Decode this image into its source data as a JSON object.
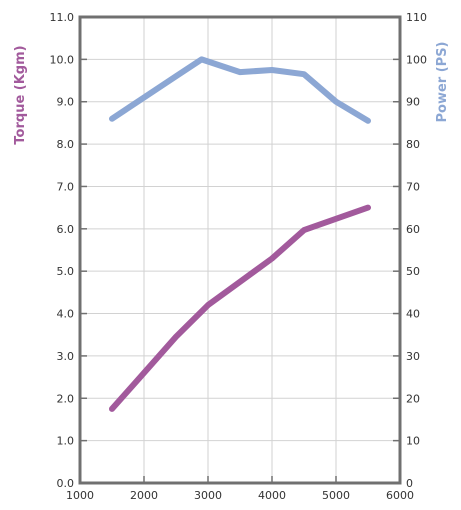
{
  "chart_data": {
    "type": "line",
    "xlabel": "",
    "y_left_label": "Torque (Kgm)",
    "y_right_label": "Power (PS)",
    "x_ticks": [
      "1000",
      "2000",
      "3000",
      "4000",
      "5000",
      "6000"
    ],
    "y_left_ticks": [
      "0.0",
      "1.0",
      "2.0",
      "3.0",
      "4.0",
      "5.0",
      "6.0",
      "7.0",
      "8.0",
      "9.0",
      "10.0",
      "11.0"
    ],
    "y_right_ticks": [
      "0",
      "10",
      "20",
      "30",
      "40",
      "50",
      "60",
      "70",
      "80",
      "90",
      "100",
      "110"
    ],
    "xlim": [
      1000,
      6000
    ],
    "y_left_lim": [
      0,
      11
    ],
    "y_right_lim": [
      0,
      110
    ],
    "grid": true,
    "series": [
      {
        "axis": "left",
        "color": "#a25a9c",
        "points": [
          [
            1500,
            1.75
          ],
          [
            2000,
            2.6
          ],
          [
            2500,
            3.45
          ],
          [
            3000,
            4.2
          ],
          [
            3500,
            4.75
          ],
          [
            4000,
            5.3
          ],
          [
            4500,
            5.97
          ],
          [
            5500,
            6.5
          ]
        ]
      },
      {
        "axis": "right",
        "color": "#8ca7d4",
        "points": [
          [
            1500,
            86
          ],
          [
            2000,
            91
          ],
          [
            2500,
            96
          ],
          [
            2900,
            100
          ],
          [
            3500,
            97
          ],
          [
            4000,
            97.5
          ],
          [
            4500,
            96.5
          ],
          [
            5000,
            90
          ],
          [
            5500,
            85.5
          ]
        ]
      }
    ]
  },
  "colors": {
    "torque": "#a25a9c",
    "power": "#8ca7d4",
    "frame": "#707070",
    "grid": "#d2d2d2"
  }
}
